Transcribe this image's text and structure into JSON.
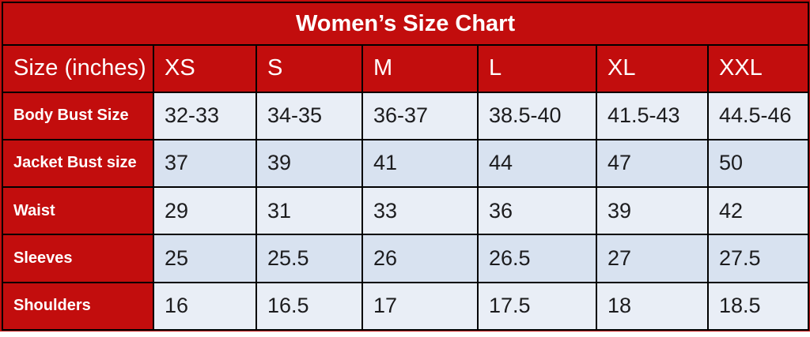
{
  "title": "Women’s Size Chart",
  "chart_data": {
    "type": "table",
    "title": "Women’s Size Chart",
    "unit_note": "inches",
    "header": [
      "Size (inches)",
      "XS",
      "S",
      "M",
      "L",
      "XL",
      "XXL"
    ],
    "rows": [
      {
        "label": "Body Bust Size",
        "values": [
          "32-33",
          "34-35",
          "36-37",
          "38.5-40",
          "41.5-43",
          "44.5-46"
        ]
      },
      {
        "label": "Jacket Bust size",
        "values": [
          "37",
          "39",
          "41",
          "44",
          "47",
          "50"
        ]
      },
      {
        "label": "Waist",
        "values": [
          "29",
          "31",
          "33",
          "36",
          "39",
          "42"
        ]
      },
      {
        "label": "Sleeves",
        "values": [
          "25",
          "25.5",
          "26",
          "26.5",
          "27",
          "27.5"
        ]
      },
      {
        "label": "Shoulders",
        "values": [
          "16",
          "16.5",
          "17",
          "17.5",
          "18",
          "18.5"
        ]
      }
    ],
    "layout": {
      "banding": [
        "light",
        "dark",
        "light",
        "dark",
        "light"
      ],
      "grid": true,
      "legend": "none"
    }
  },
  "colors": {
    "red": "#c20d0d",
    "border": "#000000",
    "header_text": "#ffffff",
    "cell_text": "#1c1c1e",
    "row_light": "#e9eef6",
    "row_dark": "#d8e2f0",
    "bottom_strip": "#ffffff"
  }
}
